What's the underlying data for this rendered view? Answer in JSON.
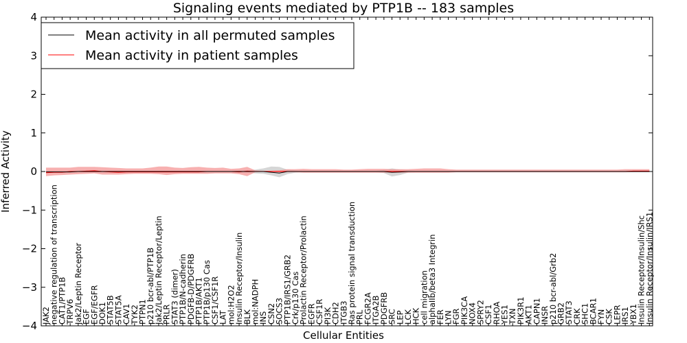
{
  "chart_data": {
    "type": "line",
    "title": "Signaling events mediated by PTP1B -- 183 samples",
    "xlabel": "Cellular Entities",
    "ylabel": "Inferred Activity",
    "ylim": [
      -4,
      4
    ],
    "yticks": [
      -4,
      -3,
      -2,
      -1,
      0,
      1,
      2,
      3,
      4
    ],
    "ytick_labels": [
      "−4",
      "−3",
      "−2",
      "−1",
      "0",
      "1",
      "2",
      "3",
      "4"
    ],
    "legend_position": "top-left",
    "categories": [
      "JAK2",
      "negative regulation of transcription",
      "CAT1/PTP1B",
      "TRPV6",
      "Jak2/Leptin Receptor",
      "EGF",
      "EGF/EGFR",
      "DOK1",
      "STAT5B",
      "STAT5A",
      "CAV1",
      "TYK2",
      "PTPN1",
      "p210 bcr-abl/PTP1B",
      "Jak2/Leptin Receptor/Leptin",
      "PRLR",
      "STAT3 (dimer)",
      "PTP1B/N-cadherin",
      "PDGFB-D/PDGFRB",
      "PTP1B/AKT1",
      "PTP1B/p130 Cas",
      "CSF1/CSF1R",
      "LAT",
      "mol:H2O2",
      "Insulin Receptor/Insulin",
      "BLK",
      "mol:NADPH",
      "INS",
      "CSN2",
      "SOCS3",
      "PTP1B/IRS1/GRB2",
      "Crk/p130 Cas",
      "Prolactin Receptor/Prolactin",
      "EGFR",
      "CSF1R",
      "PI3K",
      "CDH2",
      "ITGB3",
      "Ras protein signal transduction",
      "PRL",
      "FCGR2A",
      "ITGA2B",
      "PDGFRB",
      "SRC",
      "LEP",
      "LCK",
      "HCK",
      "cell migration",
      "alphaIIb/beta3 Integrin",
      "FER",
      "LYN",
      "FGR",
      "PIK3CA",
      "NOX4",
      "SPRY2",
      "CSF1",
      "RHOA",
      "YES1",
      "TXN",
      "PIK3R1",
      "AKT1",
      "CAPN1",
      "INSR",
      "p210 bcr-abl/Grb2",
      "GRB2",
      "STAT3",
      "CRK",
      "SHC1",
      "BCAR1",
      "FYN",
      "CSK",
      "LEPR",
      "IRS1",
      "YBX1",
      "Insulin Receptor/Insulin/Shc",
      "Insulin Receptor/Insulin/IRS1"
    ],
    "series": [
      {
        "name": "Mean activity in all permuted samples",
        "color": "#000000",
        "band_color": "#c8c8c8",
        "values": [
          -0.01,
          -0.01,
          -0.01,
          -0.01,
          0.0,
          0.0,
          0.0,
          0.0,
          0.0,
          0.0,
          0.0,
          0.0,
          0.0,
          0.0,
          0.0,
          0.0,
          0.0,
          0.0,
          0.0,
          0.0,
          0.0,
          0.0,
          0.0,
          0.0,
          0.0,
          0.0,
          0.0,
          0.0,
          -0.02,
          -0.04,
          0.0,
          0.0,
          0.0,
          0.0,
          0.0,
          0.0,
          0.0,
          0.0,
          0.0,
          0.0,
          0.0,
          0.0,
          0.0,
          -0.02,
          -0.01,
          0.0,
          0.0,
          0.0,
          0.0,
          0.0,
          0.0,
          0.0,
          0.0,
          0.0,
          0.0,
          0.0,
          0.0,
          0.0,
          0.0,
          0.0,
          0.0,
          0.0,
          0.0,
          0.0,
          0.0,
          0.0,
          0.0,
          0.0,
          0.0,
          0.0,
          0.0,
          0.0,
          0.0,
          0.0,
          0.0,
          0.0
        ],
        "lower": [
          -0.03,
          -0.03,
          -0.03,
          -0.03,
          -0.02,
          -0.02,
          -0.02,
          -0.02,
          -0.02,
          -0.02,
          -0.02,
          -0.02,
          -0.02,
          -0.02,
          -0.02,
          -0.02,
          -0.02,
          -0.02,
          -0.02,
          -0.02,
          -0.02,
          -0.02,
          -0.02,
          -0.02,
          -0.03,
          -0.03,
          -0.05,
          -0.06,
          -0.1,
          -0.15,
          -0.07,
          -0.03,
          -0.02,
          -0.02,
          -0.02,
          -0.02,
          -0.02,
          -0.02,
          -0.02,
          -0.02,
          -0.02,
          -0.02,
          -0.04,
          -0.13,
          -0.09,
          -0.03,
          -0.02,
          -0.02,
          -0.02,
          -0.02,
          -0.02,
          -0.02,
          -0.02,
          -0.02,
          -0.02,
          -0.02,
          -0.02,
          -0.02,
          -0.02,
          -0.02,
          -0.02,
          -0.02,
          -0.02,
          -0.02,
          -0.02,
          -0.02,
          -0.02,
          -0.02,
          -0.02,
          -0.02,
          -0.02,
          -0.02,
          -0.02,
          -0.02,
          -0.02,
          -0.02
        ],
        "upper": [
          0.02,
          0.02,
          0.02,
          0.02,
          0.02,
          0.02,
          0.02,
          0.02,
          0.02,
          0.02,
          0.02,
          0.02,
          0.02,
          0.02,
          0.02,
          0.02,
          0.02,
          0.02,
          0.02,
          0.02,
          0.02,
          0.02,
          0.02,
          0.02,
          0.03,
          0.03,
          0.05,
          0.08,
          0.13,
          0.12,
          0.05,
          0.03,
          0.02,
          0.02,
          0.02,
          0.02,
          0.02,
          0.02,
          0.02,
          0.02,
          0.02,
          0.02,
          0.04,
          0.08,
          0.05,
          0.03,
          0.02,
          0.02,
          0.02,
          0.02,
          0.02,
          0.02,
          0.02,
          0.02,
          0.02,
          0.02,
          0.02,
          0.02,
          0.02,
          0.02,
          0.02,
          0.02,
          0.02,
          0.02,
          0.02,
          0.02,
          0.02,
          0.02,
          0.02,
          0.02,
          0.02,
          0.02,
          0.02,
          0.02,
          0.02,
          0.02
        ]
      },
      {
        "name": "Mean activity in patient samples",
        "color": "#ff0000",
        "band_color": "#f48f8f",
        "values": [
          -0.03,
          -0.02,
          -0.02,
          0.0,
          0.0,
          0.01,
          0.02,
          0.0,
          -0.01,
          -0.02,
          -0.01,
          -0.01,
          -0.01,
          -0.01,
          -0.01,
          -0.01,
          -0.01,
          -0.01,
          -0.01,
          -0.01,
          0.0,
          0.0,
          0.0,
          0.0,
          -0.01,
          0.01,
          0.0,
          0.0,
          0.0,
          0.0,
          0.0,
          0.0,
          0.0,
          0.0,
          0.0,
          0.0,
          0.0,
          0.0,
          0.0,
          0.0,
          0.0,
          0.0,
          0.0,
          0.0,
          0.0,
          0.0,
          0.0,
          0.0,
          0.0,
          0.0,
          0.0,
          0.0,
          0.0,
          0.0,
          0.0,
          0.0,
          0.0,
          0.0,
          0.0,
          0.0,
          0.0,
          0.0,
          0.0,
          0.0,
          0.0,
          0.0,
          0.0,
          0.0,
          0.0,
          0.0,
          0.0,
          0.0,
          0.0,
          0.01,
          0.01,
          0.01
        ],
        "lower": [
          -0.12,
          -0.1,
          -0.09,
          -0.08,
          -0.07,
          -0.06,
          -0.05,
          -0.08,
          -0.08,
          -0.08,
          -0.07,
          -0.06,
          -0.06,
          -0.06,
          -0.07,
          -0.09,
          -0.07,
          -0.06,
          -0.06,
          -0.06,
          -0.06,
          -0.05,
          -0.05,
          -0.05,
          -0.07,
          -0.12,
          -0.02,
          -0.01,
          -0.01,
          -0.02,
          -0.02,
          -0.02,
          -0.03,
          -0.03,
          -0.03,
          -0.03,
          -0.03,
          -0.03,
          -0.03,
          -0.03,
          -0.03,
          -0.03,
          -0.03,
          -0.03,
          -0.03,
          -0.03,
          -0.03,
          -0.03,
          -0.03,
          -0.03,
          -0.03,
          -0.02,
          -0.02,
          -0.02,
          -0.02,
          -0.02,
          -0.02,
          -0.02,
          -0.02,
          -0.02,
          -0.02,
          -0.02,
          -0.02,
          -0.02,
          -0.02,
          -0.02,
          -0.02,
          -0.02,
          -0.02,
          -0.02,
          -0.02,
          -0.02,
          -0.02,
          -0.01,
          -0.01,
          -0.01
        ],
        "upper": [
          0.1,
          0.1,
          0.1,
          0.1,
          0.12,
          0.12,
          0.12,
          0.11,
          0.1,
          0.09,
          0.08,
          0.08,
          0.08,
          0.1,
          0.13,
          0.13,
          0.1,
          0.09,
          0.11,
          0.12,
          0.1,
          0.09,
          0.1,
          0.07,
          0.08,
          0.12,
          0.03,
          0.02,
          0.02,
          0.03,
          0.06,
          0.06,
          0.07,
          0.06,
          0.06,
          0.06,
          0.06,
          0.05,
          0.05,
          0.06,
          0.07,
          0.07,
          0.07,
          0.06,
          0.06,
          0.06,
          0.07,
          0.08,
          0.08,
          0.08,
          0.06,
          0.05,
          0.05,
          0.05,
          0.05,
          0.05,
          0.05,
          0.05,
          0.05,
          0.05,
          0.05,
          0.05,
          0.05,
          0.05,
          0.05,
          0.05,
          0.05,
          0.05,
          0.05,
          0.05,
          0.05,
          0.05,
          0.06,
          0.06,
          0.06,
          0.06
        ]
      }
    ]
  }
}
